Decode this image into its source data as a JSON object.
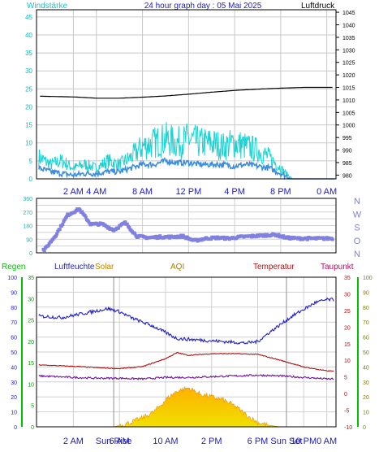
{
  "header": {
    "left_label": "Windstärke",
    "title": "24 hour graph day : 05 Mai 2025",
    "right_label": "Luftdruck"
  },
  "panel3_labels": {
    "regen": "Regen",
    "luftfeuchte": "Luftfeuchte",
    "solar": "Solar",
    "aqi": "AQI",
    "temperatur": "Temperatur",
    "taupunkt": "Taupunkt"
  },
  "colors": {
    "wind_speed": "#1ed2d2",
    "wind_avg": "#3b8ee0",
    "pressure": "#000000",
    "direction": "#8080e0",
    "humidity": "#1f1fd0",
    "temperature": "#b01010",
    "dewpoint": "#7010a0",
    "solar_top": "#ffb000",
    "solar_bottom": "#f0e000",
    "regen": "#00c000",
    "header_cyan": "#20c0c0",
    "header_blue": "#2020c0"
  },
  "chart_data": [
    {
      "type": "line",
      "title": "24 hour graph day : 05 Mai 2025",
      "left_axis": {
        "label": "Windstärke",
        "ticks": [
          0,
          5,
          10,
          15,
          20,
          25,
          30,
          35,
          40,
          45
        ],
        "ylim": [
          0,
          47
        ]
      },
      "right_axis": {
        "label": "Luftdruck",
        "ticks": [
          980,
          985,
          990,
          995,
          1000,
          1005,
          1010,
          1015,
          1020,
          1025,
          1030,
          1035,
          1040,
          1045
        ],
        "ylim": [
          978.5,
          1046
        ]
      },
      "x_ticks": [
        "2 AM",
        "4 AM",
        "8 AM",
        "12 PM",
        "4 PM",
        "8 PM",
        "0 AM"
      ],
      "x_tick_hours": [
        2,
        4,
        8,
        12,
        16,
        20,
        24
      ],
      "x_hours_range": [
        -1.2,
        24.8
      ],
      "series": [
        {
          "key": "gust",
          "hours": [
            -1,
            0,
            1,
            2,
            3,
            4,
            5,
            6,
            7,
            8,
            9,
            10,
            11,
            12,
            13,
            14,
            15,
            16,
            17,
            18,
            19,
            20,
            21,
            22,
            23,
            24
          ],
          "values": [
            6,
            4,
            5,
            3,
            4,
            3,
            5,
            4,
            6,
            9,
            10,
            11,
            10,
            11,
            10,
            10,
            9,
            10,
            9,
            8,
            6,
            3,
            0,
            0,
            0,
            0
          ]
        },
        {
          "key": "average",
          "hours": [
            -1,
            0,
            1,
            2,
            3,
            4,
            5,
            6,
            7,
            8,
            9,
            10,
            11,
            12,
            13,
            14,
            15,
            16,
            17,
            18,
            19,
            20,
            21,
            22,
            23,
            24
          ],
          "values": [
            3,
            2,
            1.5,
            1,
            1.5,
            1.5,
            2,
            2,
            3,
            4,
            4,
            5,
            4.5,
            4.5,
            4,
            4,
            4,
            3.5,
            4,
            3.5,
            3,
            1.5,
            0,
            0,
            0,
            0
          ]
        },
        {
          "key": "pressure",
          "hours": [
            -1,
            2,
            4,
            6,
            8,
            10,
            12,
            14,
            16,
            18,
            20,
            22,
            24
          ],
          "values": [
            1011.5,
            1011.2,
            1010.7,
            1010.7,
            1011.1,
            1011.6,
            1012.3,
            1013.1,
            1013.8,
            1014.3,
            1014.7,
            1015,
            1015
          ]
        }
      ]
    },
    {
      "type": "scatter",
      "left_axis": {
        "ticks": [
          0,
          45,
          90,
          135,
          180,
          225,
          270,
          315,
          360
        ],
        "labels": [
          "0",
          "",
          "90",
          "",
          "180",
          "",
          "270",
          "",
          "360"
        ],
        "ylim": [
          0,
          360
        ]
      },
      "right_axis_labels": [
        "N",
        "W",
        "S",
        "O",
        "N"
      ],
      "x_hours_range": [
        -1.2,
        24.8
      ],
      "series": [
        {
          "key": "direction",
          "hours": [
            -0.5,
            0.5,
            1.5,
            2.5,
            3.5,
            4.5,
            5.5,
            6.5,
            7.5,
            8.5,
            9.5,
            10.5,
            11.5,
            12.5,
            13.5,
            14.5,
            15.5,
            16.5,
            17.5,
            18.5,
            19.5,
            20.5,
            21.5,
            22.5,
            23.5,
            24.5
          ],
          "values": [
            20,
            120,
            250,
            290,
            190,
            190,
            150,
            200,
            110,
            100,
            105,
            105,
            110,
            80,
            95,
            100,
            95,
            105,
            110,
            115,
            120,
            100,
            95,
            95,
            95,
            95
          ]
        }
      ]
    },
    {
      "type": "line",
      "left_axis": {
        "label": "Regen",
        "ticks": [
          0,
          10,
          20,
          30,
          40,
          50,
          60,
          70,
          80,
          90,
          100
        ],
        "ylim": [
          0,
          100
        ]
      },
      "inner_left_axis": {
        "label": "Luftfeuchte",
        "ticks": [
          0,
          5,
          10,
          15,
          20,
          25,
          30,
          35
        ],
        "ylim": [
          0,
          35
        ]
      },
      "right_axis": {
        "label": "Temperatur",
        "ticks": [
          -10,
          -5,
          0,
          5,
          10,
          15,
          20,
          25,
          30,
          35
        ],
        "ylim": [
          -10,
          35
        ]
      },
      "outer_right_axis": {
        "label": "Taupunkt",
        "ticks": [
          0,
          10,
          20,
          30,
          40,
          50,
          60,
          70,
          80,
          90,
          100
        ],
        "ylim": [
          0,
          100
        ]
      },
      "x_ticks": [
        "2 AM",
        "Sun Rise",
        "6 AM",
        "10 AM",
        "2 PM",
        "6 PM",
        "Sun Set",
        "10 PM",
        "0 AM"
      ],
      "x_tick_hours": [
        2,
        5.5,
        6,
        10,
        14,
        18,
        20.5,
        22,
        24
      ],
      "x_hours_range": [
        -1.2,
        24.8
      ],
      "series": [
        {
          "key": "humidity",
          "hours": [
            -1,
            1,
            3,
            5,
            6,
            7,
            9,
            11,
            13,
            15,
            17,
            18,
            19,
            21,
            23,
            24
          ],
          "values": [
            74,
            73,
            76,
            79,
            77,
            73,
            67,
            59,
            58,
            57,
            56,
            57,
            63,
            74,
            83,
            85
          ]
        },
        {
          "key": "temperature",
          "hours": [
            -1,
            2,
            4,
            6,
            8,
            10,
            11,
            12,
            14,
            16,
            18,
            20,
            22,
            24
          ],
          "values": [
            8.6,
            8.2,
            7.8,
            7.5,
            8.1,
            10.5,
            12.3,
            11.5,
            12,
            12,
            11.8,
            10,
            8,
            6.8
          ]
        },
        {
          "key": "dewpoint",
          "hours": [
            -1,
            2,
            4,
            6,
            8,
            10,
            12,
            14,
            16,
            18,
            20,
            22,
            24
          ],
          "values": [
            34,
            33,
            32.5,
            32.5,
            32,
            33,
            33,
            33.5,
            34,
            34.5,
            34,
            33,
            32
          ]
        },
        {
          "key": "solar",
          "hours": [
            -1,
            5.5,
            6,
            7,
            8,
            9,
            10,
            11,
            12,
            13,
            14,
            15,
            16,
            17,
            18,
            19,
            20,
            20.5,
            24
          ],
          "values": [
            0,
            0,
            1,
            3,
            6,
            10,
            18,
            24,
            26,
            22,
            20,
            18,
            14,
            8,
            3,
            1,
            0,
            0,
            0
          ]
        }
      ]
    }
  ]
}
